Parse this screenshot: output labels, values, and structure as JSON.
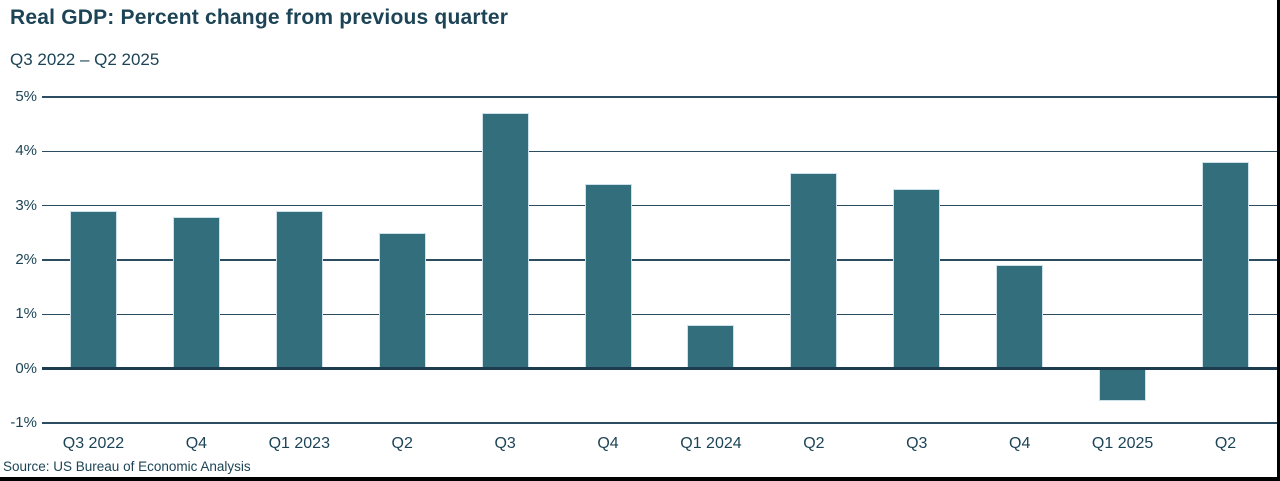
{
  "header": {
    "title": "Real GDP: Percent change from previous quarter",
    "subtitle": "Q3 2022 – Q2 2025"
  },
  "chart_data": {
    "type": "bar",
    "categories": [
      "Q3 2022",
      "Q4",
      "Q1 2023",
      "Q2",
      "Q3",
      "Q4",
      "Q1 2024",
      "Q2",
      "Q3",
      "Q4",
      "Q1 2025",
      "Q2"
    ],
    "values": [
      2.9,
      2.8,
      2.9,
      2.5,
      4.7,
      3.4,
      0.8,
      3.6,
      3.3,
      1.9,
      -0.6,
      3.8
    ],
    "title": "Real GDP: Percent change from previous quarter",
    "subtitle": "Q3 2022 – Q2 2025",
    "xlabel": "",
    "ylabel": "",
    "ylim": [
      -1,
      5
    ],
    "y_ticks": [
      5,
      4,
      3,
      2,
      1,
      0,
      -1
    ],
    "y_tick_labels": [
      "5%",
      "4%",
      "3%",
      "2%",
      "1%",
      "0%",
      "-1%"
    ],
    "grid": "horizontal",
    "legend": "none",
    "bar_color": "#336e7d",
    "bar_border_color": "#cde1ec",
    "gridline_color": "#2b4c61",
    "zero_line_color": "#1e3c50",
    "text_color": "#1d4456"
  },
  "footer": {
    "source": "Source: US Bureau of Economic Analysis"
  },
  "colors": {
    "background": "#ffffff",
    "frame_border": "#000000"
  }
}
